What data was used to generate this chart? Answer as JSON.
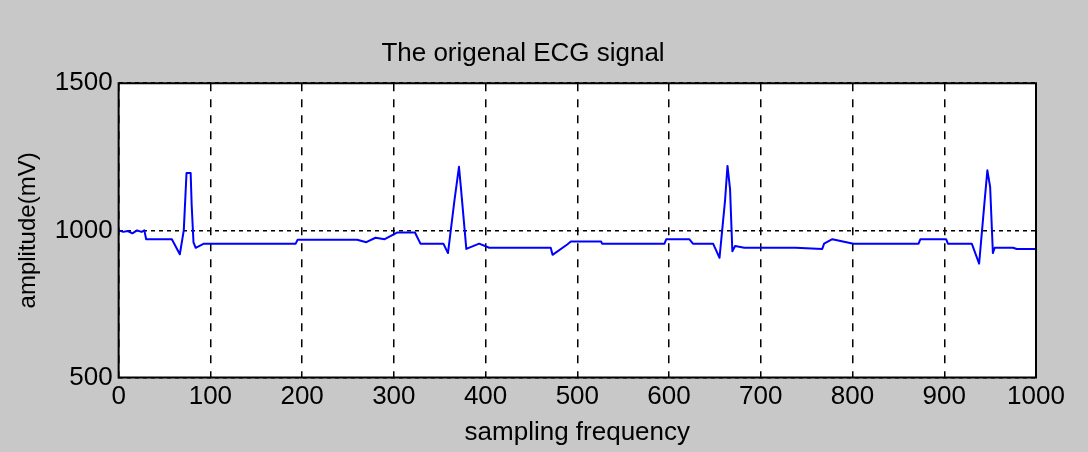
{
  "chart_data": {
    "type": "line",
    "title": "The origenal ECG signal",
    "xlabel": "sampling frequency",
    "ylabel": "amplitude(mV)",
    "series": [
      {
        "color": "#0000ff",
        "x": [
          0,
          5,
          10,
          15,
          20,
          25,
          28,
          30,
          58,
          66.7,
          71,
          74,
          78.5,
          79.6,
          81.6,
          84,
          93,
          193,
          195,
          260,
          270,
          280,
          290,
          304,
          323,
          329,
          354,
          359,
          366,
          371,
          373,
          379,
          393,
          404,
          471,
          473,
          489,
          493,
          526,
          527,
          595,
          597,
          622,
          626,
          648,
          655,
          661,
          663.7,
          666.5,
          669,
          672,
          682,
          738,
          767,
          769,
          778,
          801,
          872,
          874,
          902,
          904,
          930,
          938,
          944,
          947,
          950,
          953,
          955,
          975,
          979,
          1000
        ],
        "values": [
          1000,
          995,
          998,
          990,
          1000,
          995,
          1000,
          970,
          970,
          919,
          1000,
          1195,
          1195,
          1087,
          959,
          941,
          955,
          955,
          968,
          968,
          960,
          975,
          970,
          993,
          993,
          955,
          955,
          923,
          1100,
          1216,
          1149,
          937,
          955,
          941,
          941,
          917,
          952,
          962,
          962,
          955,
          955,
          970,
          970,
          955,
          955,
          907,
          1100,
          1219,
          1140,
          929,
          947,
          941,
          941,
          937,
          955,
          970,
          955,
          955,
          970,
          970,
          955,
          955,
          887,
          1100,
          1204,
          1148,
          923,
          941,
          941,
          937,
          937
        ]
      }
    ],
    "xlim": [
      0,
      1000
    ],
    "xticks": [
      0,
      100,
      200,
      300,
      400,
      500,
      600,
      700,
      800,
      900,
      1000
    ],
    "ylim": [
      500,
      1500
    ],
    "yticks": [
      500,
      1000,
      1500
    ],
    "grid": true,
    "line_style": "solid",
    "marker": "none"
  }
}
